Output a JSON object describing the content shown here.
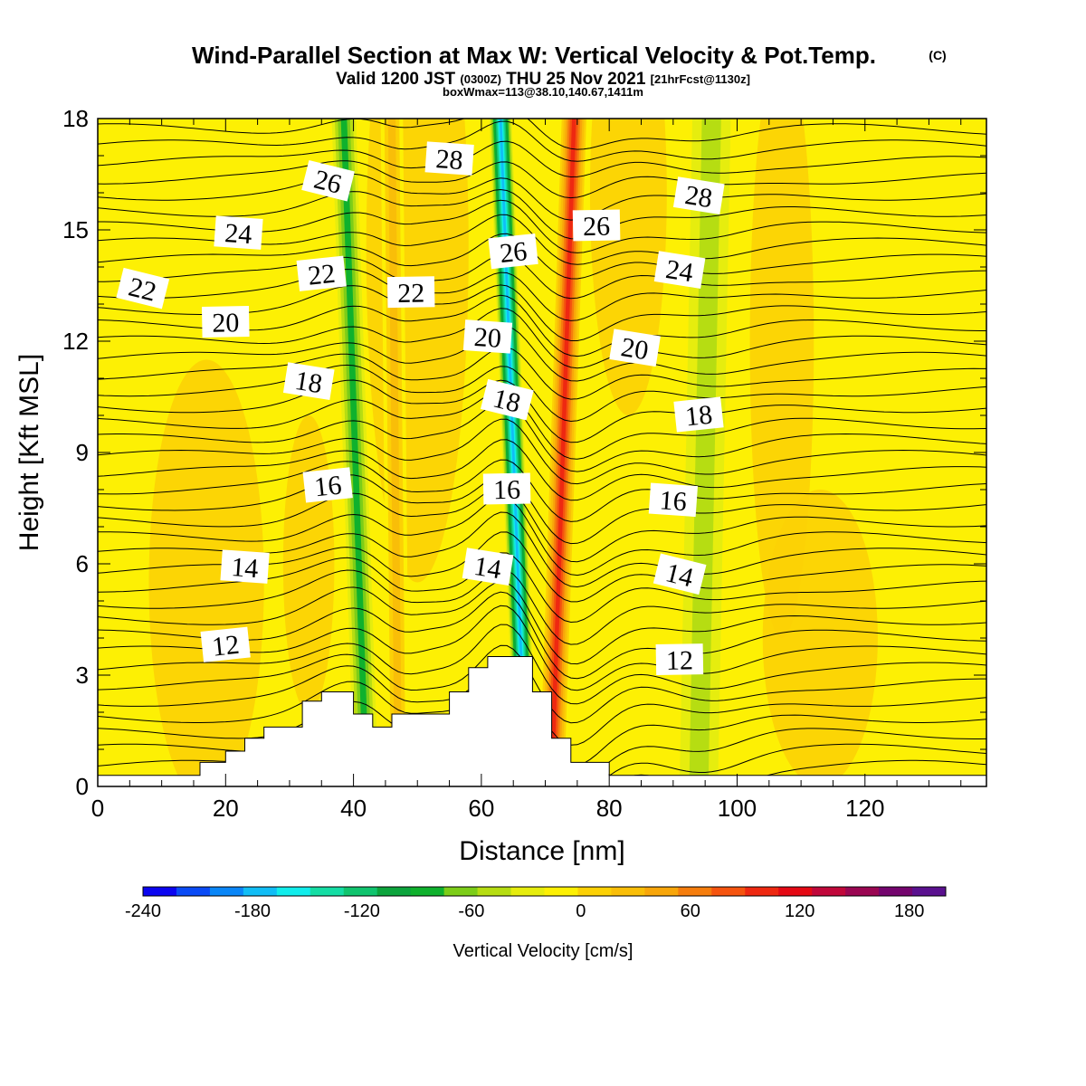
{
  "title": {
    "main": "Wind-Parallel Section at Max W: Vertical Velocity & Pot.Temp.",
    "copyright": "(C)",
    "valid_prefix": "Valid 1200 JST",
    "valid_utc": "(0300Z)",
    "valid_suffix": "THU 25 Nov 2021",
    "forecast": "[21hrFcst@1130z]",
    "box": "boxWmax=113@38.10,140.67,1411m"
  },
  "chart_data": {
    "type": "heatmap",
    "xlabel": "Distance [nm]",
    "ylabel": "Height [Kft MSL]",
    "xlim": [
      0,
      139
    ],
    "ylim": [
      0,
      18
    ],
    "x_ticks": [
      0,
      20,
      40,
      60,
      80,
      100,
      120
    ],
    "y_ticks": [
      0,
      3,
      6,
      9,
      12,
      15,
      18
    ],
    "colorbar": {
      "label": "Vertical Velocity [cm/s]",
      "range": [
        -240,
        200
      ],
      "step": 20,
      "tick_labels": [
        "-240",
        "-180",
        "-120",
        "-60",
        "0",
        "60",
        "120",
        "180"
      ],
      "tick_values": [
        -240,
        -180,
        -120,
        -60,
        0,
        60,
        120,
        180
      ],
      "colors": [
        "#0b05f0",
        "#0a4af5",
        "#0a86f7",
        "#11bdf5",
        "#11edeb",
        "#14dda4",
        "#10c46e",
        "#0ca43c",
        "#0fb12d",
        "#7ccd18",
        "#b6dd12",
        "#e6ed0e",
        "#fdf004",
        "#fcd105",
        "#f9be08",
        "#f8a60a",
        "#f57d0d",
        "#f5540f",
        "#ee2811",
        "#e40914",
        "#c0073a",
        "#9a0652",
        "#74056e",
        "#5a118f"
      ]
    },
    "terrain_profile": {
      "x": [
        0,
        16,
        16,
        20,
        20,
        23,
        23,
        26,
        26,
        32,
        32,
        35,
        35,
        40,
        40,
        43,
        43,
        46,
        46,
        55,
        55,
        58,
        58,
        61,
        61,
        68,
        68,
        71,
        71,
        74,
        74,
        80,
        80,
        139
      ],
      "y": [
        0.3,
        0.3,
        0.65,
        0.65,
        0.95,
        0.95,
        1.3,
        1.3,
        1.6,
        1.6,
        2.3,
        2.3,
        2.55,
        2.55,
        1.95,
        1.95,
        1.6,
        1.6,
        1.95,
        1.95,
        2.55,
        2.55,
        3.2,
        3.2,
        3.5,
        3.5,
        2.55,
        2.55,
        1.3,
        1.3,
        0.65,
        0.65,
        0.3,
        0.3
      ]
    },
    "velocity_bands": [
      {
        "x_center": [
          42,
          38.5
        ],
        "width": 3.8,
        "value": -90
      },
      {
        "x_center": [
          47,
          46
        ],
        "width": 3.5,
        "value": 60
      },
      {
        "x_center": [
          67,
          63
        ],
        "width": 3.5,
        "value": -180
      },
      {
        "x_center": [
          71,
          74.5
        ],
        "width": 4.5,
        "value": 150
      },
      {
        "x_center": [
          94,
          96
        ],
        "width": 6,
        "value": -40
      }
    ],
    "theta_contour_labels": [
      {
        "text": "12",
        "x": 20,
        "y": 3.8
      },
      {
        "text": "12",
        "x": 91,
        "y": 3.4
      },
      {
        "text": "14",
        "x": 23,
        "y": 5.9
      },
      {
        "text": "14",
        "x": 61,
        "y": 5.9
      },
      {
        "text": "14",
        "x": 91,
        "y": 5.7
      },
      {
        "text": "16",
        "x": 36,
        "y": 8.1
      },
      {
        "text": "16",
        "x": 64,
        "y": 8.0
      },
      {
        "text": "16",
        "x": 90,
        "y": 7.7
      },
      {
        "text": "18",
        "x": 33,
        "y": 10.9
      },
      {
        "text": "18",
        "x": 64,
        "y": 10.4
      },
      {
        "text": "18",
        "x": 94,
        "y": 10.0
      },
      {
        "text": "20",
        "x": 20,
        "y": 12.5
      },
      {
        "text": "20",
        "x": 61,
        "y": 12.1
      },
      {
        "text": "20",
        "x": 84,
        "y": 11.8
      },
      {
        "text": "22",
        "x": 7,
        "y": 13.4
      },
      {
        "text": "22",
        "x": 35,
        "y": 13.8
      },
      {
        "text": "22",
        "x": 49,
        "y": 13.3
      },
      {
        "text": "24",
        "x": 22,
        "y": 14.9
      },
      {
        "text": "24",
        "x": 91,
        "y": 13.9
      },
      {
        "text": "26",
        "x": 36,
        "y": 16.3
      },
      {
        "text": "26",
        "x": 65,
        "y": 14.4
      },
      {
        "text": "26",
        "x": 78,
        "y": 15.1
      },
      {
        "text": "28",
        "x": 55,
        "y": 16.9
      },
      {
        "text": "28",
        "x": 94,
        "y": 15.9
      }
    ]
  }
}
